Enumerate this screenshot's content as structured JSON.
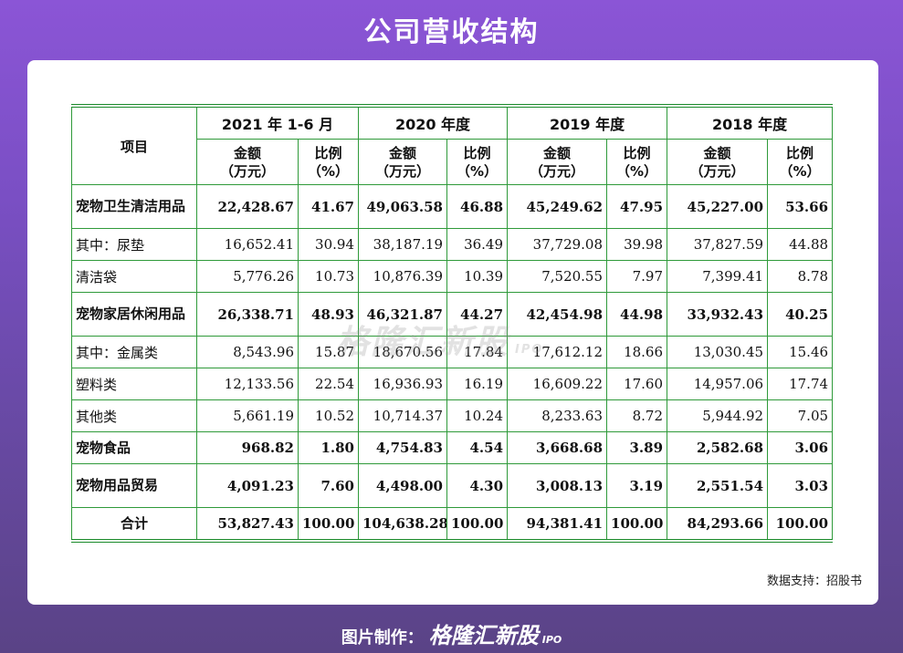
{
  "page": {
    "title": "公司营收结构"
  },
  "table": {
    "item_header": "项目",
    "periods": [
      "2021 年 1-6 月",
      "2020 年度",
      "2019 年度",
      "2018 年度"
    ],
    "amount_header_line1": "金额",
    "amount_header_line2": "（万元）",
    "ratio_header_line1": "比例",
    "ratio_header_line2": "（%）",
    "rows": [
      {
        "label": "宠物卫生清洁用品",
        "bold": true,
        "indent": 0,
        "values": [
          "22,428.67",
          "41.67",
          "49,063.58",
          "46.88",
          "45,249.62",
          "47.95",
          "45,227.00",
          "53.66"
        ]
      },
      {
        "label": "其中：尿垫",
        "bold": false,
        "indent": 1,
        "values": [
          "16,652.41",
          "30.94",
          "38,187.19",
          "36.49",
          "37,729.08",
          "39.98",
          "37,827.59",
          "44.88"
        ]
      },
      {
        "label": "清洁袋",
        "bold": false,
        "indent": 2,
        "values": [
          "5,776.26",
          "10.73",
          "10,876.39",
          "10.39",
          "7,520.55",
          "7.97",
          "7,399.41",
          "8.78"
        ]
      },
      {
        "label": "宠物家居休闲用品",
        "bold": true,
        "indent": 0,
        "values": [
          "26,338.71",
          "48.93",
          "46,321.87",
          "44.27",
          "42,454.98",
          "44.98",
          "33,932.43",
          "40.25"
        ]
      },
      {
        "label": "其中：金属类",
        "bold": false,
        "indent": 1,
        "values": [
          "8,543.96",
          "15.87",
          "18,670.56",
          "17.84",
          "17,612.12",
          "18.66",
          "13,030.45",
          "15.46"
        ]
      },
      {
        "label": "塑料类",
        "bold": false,
        "indent": 2,
        "values": [
          "12,133.56",
          "22.54",
          "16,936.93",
          "16.19",
          "16,609.22",
          "17.60",
          "14,957.06",
          "17.74"
        ]
      },
      {
        "label": "其他类",
        "bold": false,
        "indent": 2,
        "values": [
          "5,661.19",
          "10.52",
          "10,714.37",
          "10.24",
          "8,233.63",
          "8.72",
          "5,944.92",
          "7.05"
        ]
      },
      {
        "label": "宠物食品",
        "bold": true,
        "indent": 0,
        "values": [
          "968.82",
          "1.80",
          "4,754.83",
          "4.54",
          "3,668.68",
          "3.89",
          "2,582.68",
          "3.06"
        ]
      },
      {
        "label": "宠物用品贸易",
        "bold": true,
        "indent": 0,
        "values": [
          "4,091.23",
          "7.60",
          "4,498.00",
          "4.30",
          "3,008.13",
          "3.19",
          "2,551.54",
          "3.03"
        ]
      },
      {
        "label": "合计",
        "bold": true,
        "indent": 0,
        "center": true,
        "values": [
          "53,827.43",
          "100.00",
          "104,638.28",
          "100.00",
          "94,381.41",
          "100.00",
          "84,293.66",
          "100.00"
        ]
      }
    ]
  },
  "watermark": {
    "text": "格隆汇新股",
    "suffix": "IPO"
  },
  "source": "数据支持：招股书",
  "footer": {
    "prefix": "图片制作：",
    "brand": "格隆汇新股",
    "suffix": "IPO"
  },
  "colors": {
    "rule_green": "#1a8a2a",
    "background_top": "#8b55d6",
    "background_bottom": "#5a4386"
  }
}
